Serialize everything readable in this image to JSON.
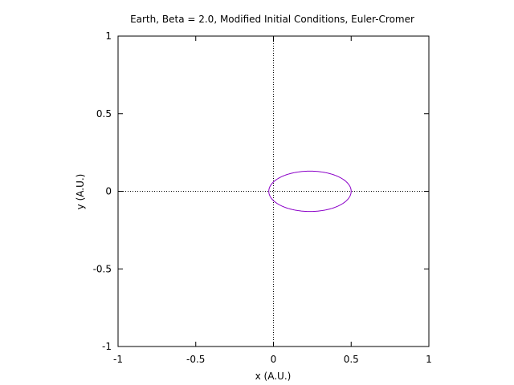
{
  "chart_data": {
    "type": "line",
    "title": "Earth, Beta = 2.0, Modified Initial Conditions, Euler-Cromer",
    "xlabel": "x (A.U.)",
    "ylabel": "y (A.U.)",
    "xlim": [
      -1,
      1
    ],
    "ylim": [
      -1,
      1
    ],
    "xticks": [
      "-1",
      "-0.5",
      "0",
      "0.5",
      "1"
    ],
    "yticks": [
      "1",
      "0.5",
      "0",
      "-0.5",
      "-1"
    ],
    "zero_axes": "dotted",
    "series": [
      {
        "color": "#8b00c8",
        "shape": "ellipse",
        "x_min": -0.03,
        "x_max": 0.5,
        "y_min": -0.13,
        "y_max": 0.13
      }
    ]
  }
}
